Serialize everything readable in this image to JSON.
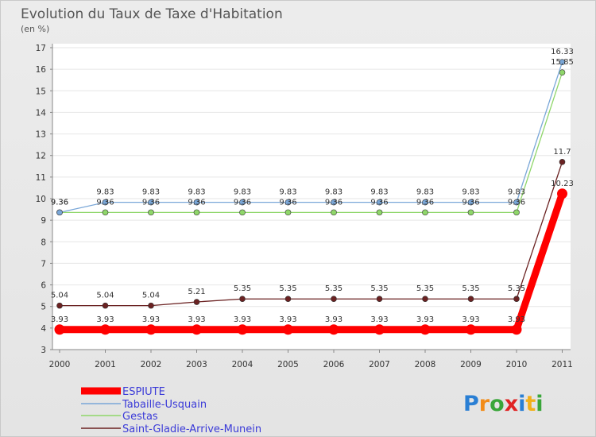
{
  "chart_data": {
    "type": "line",
    "title": "Evolution du Taux de Taxe d'Habitation",
    "subtitle": "(en %)",
    "x": [
      "2000",
      "2001",
      "2002",
      "2003",
      "2004",
      "2005",
      "2006",
      "2007",
      "2008",
      "2009",
      "2010",
      "2011"
    ],
    "ylim": [
      3,
      17
    ],
    "yticks": [
      "3",
      "4",
      "5",
      "6",
      "7",
      "8",
      "9",
      "10",
      "11",
      "12",
      "13",
      "14",
      "15",
      "16",
      "17"
    ],
    "series": [
      {
        "name": "Saint-Gladie-Arrive-Munein",
        "color": "#6b2222",
        "values": [
          5.04,
          5.04,
          5.04,
          5.21,
          5.35,
          5.35,
          5.35,
          5.35,
          5.35,
          5.35,
          5.35,
          11.7
        ],
        "labels": [
          "5.04",
          "5.04",
          "5.04",
          "5.21",
          "5.35",
          "5.35",
          "5.35",
          "5.35",
          "5.35",
          "5.35",
          "5.35",
          "11.7"
        ]
      },
      {
        "name": "Gestas",
        "color": "#8fd66a",
        "values": [
          9.36,
          9.36,
          9.36,
          9.36,
          9.36,
          9.36,
          9.36,
          9.36,
          9.36,
          9.36,
          9.36,
          15.85
        ],
        "labels": [
          "9.36",
          "9.36",
          "9.36",
          "9.36",
          "9.36",
          "9.36",
          "9.36",
          "9.36",
          "9.36",
          "9.36",
          "9.36",
          "15.85"
        ]
      },
      {
        "name": "Tabaille-Usquain",
        "color": "#7aa7d8",
        "values": [
          9.36,
          9.83,
          9.83,
          9.83,
          9.83,
          9.83,
          9.83,
          9.83,
          9.83,
          9.83,
          9.83,
          16.33
        ],
        "labels": [
          "9.36",
          "9.83",
          "9.83",
          "9.83",
          "9.83",
          "9.83",
          "9.83",
          "9.83",
          "9.83",
          "9.83",
          "9.83",
          "16.33"
        ]
      },
      {
        "name": "ESPIUTE",
        "color": "#ff0000",
        "values": [
          3.93,
          3.93,
          3.93,
          3.93,
          3.93,
          3.93,
          3.93,
          3.93,
          3.93,
          3.93,
          3.93,
          10.23
        ],
        "labels": [
          "3.93",
          "3.93",
          "3.93",
          "3.93",
          "3.93",
          "3.93",
          "3.93",
          "3.93",
          "3.93",
          "3.93",
          "3.93",
          "10.23"
        ]
      }
    ],
    "legend": [
      "ESPIUTE",
      "Tabaille-Usquain",
      "Gestas",
      "Saint-Gladie-Arrive-Munein"
    ],
    "legend_position": "bottom-left"
  },
  "logo": {
    "text": "Proxiti"
  }
}
